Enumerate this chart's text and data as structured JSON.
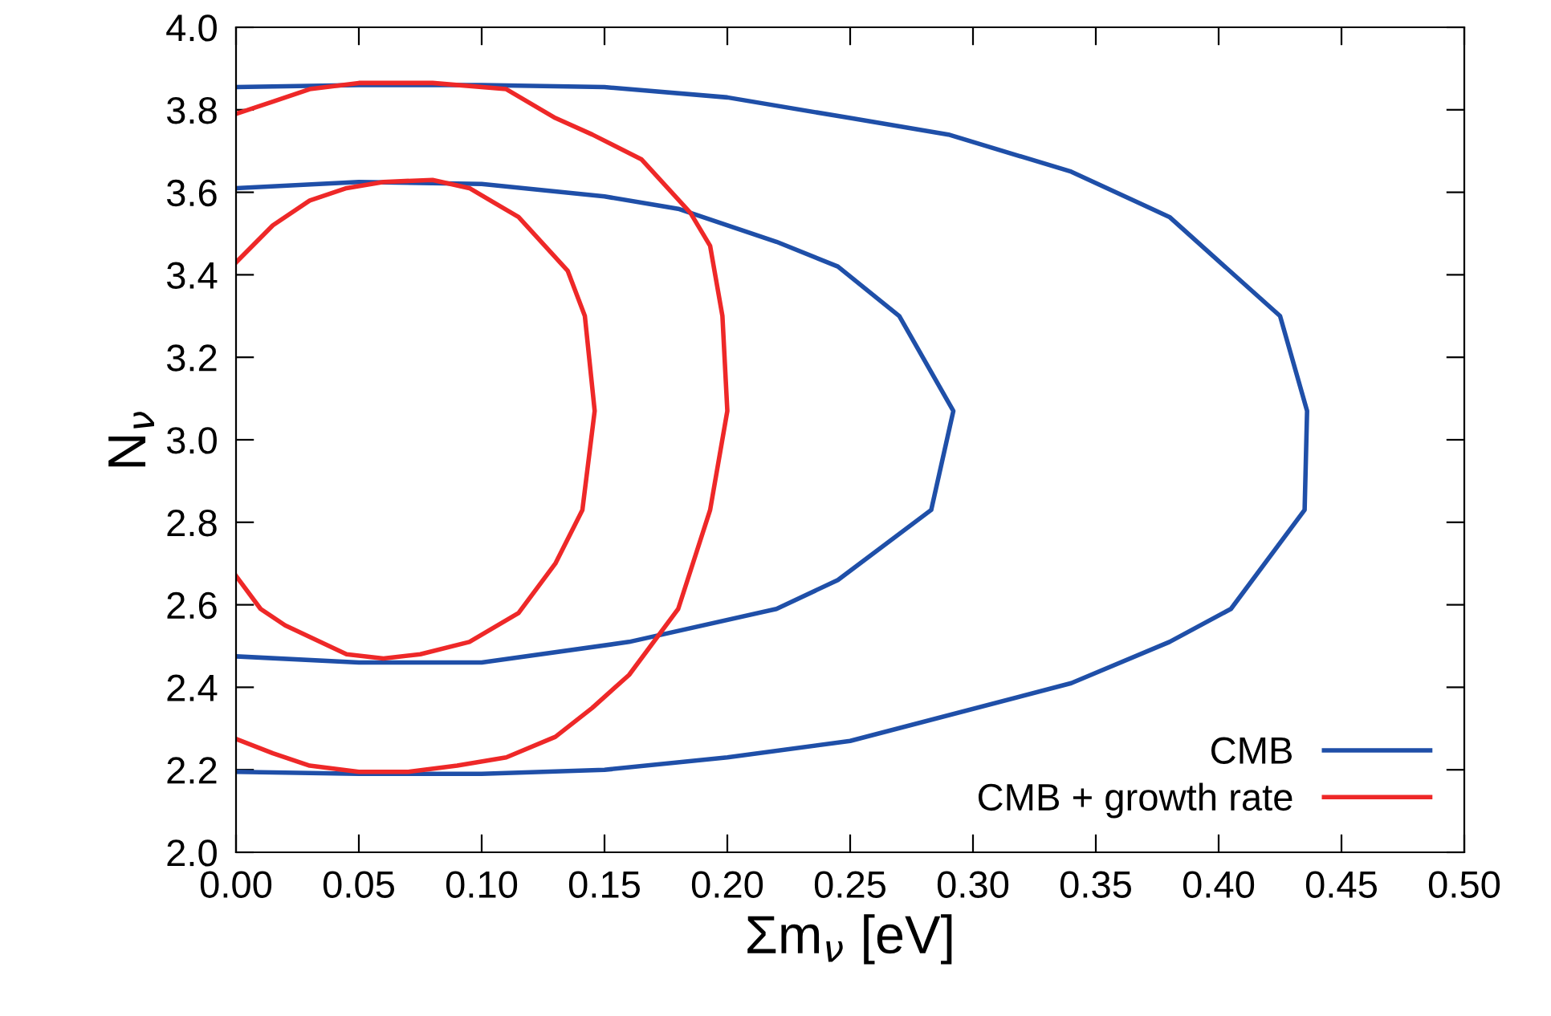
{
  "chart_data": {
    "type": "line",
    "xlabel": "Σm$_{ν}$ [eV]",
    "ylabel": "N$_{ν}$",
    "xlim": [
      0,
      0.5
    ],
    "ylim": [
      2.0,
      4.0
    ],
    "xticks": [
      {
        "value": 0,
        "label": "0.00"
      },
      {
        "value": 0.05,
        "label": "0.05"
      },
      {
        "value": 0.1,
        "label": "0.10"
      },
      {
        "value": 0.15,
        "label": "0.15"
      },
      {
        "value": 0.2,
        "label": "0.20"
      },
      {
        "value": 0.25,
        "label": "0.25"
      },
      {
        "value": 0.3,
        "label": "0.30"
      },
      {
        "value": 0.35,
        "label": "0.35"
      },
      {
        "value": 0.4,
        "label": "0.40"
      },
      {
        "value": 0.45,
        "label": "0.45"
      },
      {
        "value": 0.5,
        "label": "0.50"
      }
    ],
    "yticks": [
      {
        "value": 2,
        "label": "2.0"
      },
      2.2,
      2.4,
      2.6,
      2.8,
      {
        "value": 3,
        "label": "3.0"
      },
      3.2,
      3.4,
      3.6,
      3.8,
      {
        "value": 4,
        "label": "4.0"
      }
    ],
    "grid": false,
    "legend": "bottom right",
    "marker": "none",
    "line_style": "solid",
    "series": [
      {
        "name": "CMB",
        "color": "#1f4fa8",
        "x": [
          0,
          0.05,
          0.1,
          0.15,
          0.2,
          0.25,
          0.29,
          0.34,
          0.38,
          0.425,
          0.436,
          0.435,
          0.405,
          0.38,
          0.34,
          0.25,
          0.2,
          0.15,
          0.1,
          0.05,
          0
        ],
        "values": [
          3.855,
          3.86,
          3.86,
          3.855,
          3.83,
          3.78,
          3.74,
          3.65,
          3.54,
          3.3,
          3.07,
          2.83,
          2.59,
          2.51,
          2.41,
          2.27,
          2.23,
          2.2,
          2.19,
          2.19,
          2.195
        ]
      },
      {
        "color": "#1f4fa8",
        "x": [
          0,
          0.05,
          0.1,
          0.15,
          0.18,
          0.22,
          0.245,
          0.27,
          0.292,
          0.283,
          0.245,
          0.22,
          0.16,
          0.1,
          0.05,
          0
        ],
        "values": [
          3.61,
          3.625,
          3.62,
          3.59,
          3.56,
          3.48,
          3.42,
          3.3,
          3.07,
          2.83,
          2.66,
          2.59,
          2.51,
          2.46,
          2.46,
          2.475
        ]
      },
      {
        "name": "CMB + growth rate",
        "color": "#ee2828",
        "x": [
          0,
          0.015,
          0.03,
          0.05,
          0.08,
          0.11,
          0.13,
          0.145,
          0.165,
          0.185,
          0.193,
          0.198,
          0.2,
          0.193,
          0.18,
          0.16,
          0.145,
          0.13,
          0.11,
          0.09,
          0.07,
          0.05,
          0.03,
          0.015,
          0
        ],
        "values": [
          3.79,
          3.82,
          3.85,
          3.865,
          3.865,
          3.85,
          3.78,
          3.74,
          3.68,
          3.55,
          3.47,
          3.3,
          3.07,
          2.83,
          2.59,
          2.43,
          2.35,
          2.28,
          2.23,
          2.21,
          2.195,
          2.195,
          2.21,
          2.24,
          2.275
        ]
      },
      {
        "color": "#ee2828",
        "x": [
          0,
          0.015,
          0.03,
          0.045,
          0.06,
          0.08,
          0.095,
          0.115,
          0.135,
          0.142,
          0.146,
          0.141,
          0.13,
          0.115,
          0.095,
          0.075,
          0.06,
          0.045,
          0.02,
          0.01,
          0
        ],
        "values": [
          3.43,
          3.52,
          3.58,
          3.61,
          3.625,
          3.63,
          3.61,
          3.54,
          3.41,
          3.3,
          3.07,
          2.83,
          2.7,
          2.58,
          2.51,
          2.48,
          2.47,
          2.48,
          2.55,
          2.59,
          2.67
        ]
      }
    ]
  }
}
